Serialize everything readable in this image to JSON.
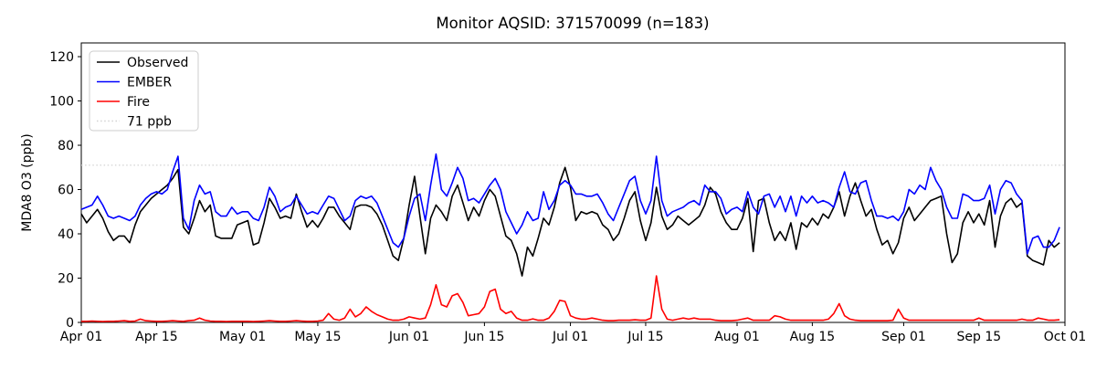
{
  "chart_data": {
    "type": "line",
    "title": "Monitor AQSID: 371570099 (n=183)",
    "ylabel": "MDA8 O3 (ppb)",
    "grid": false,
    "legend_position": "upper left",
    "x_total_days": 183,
    "x_start": "Apr 01",
    "x_end": "Oct 01",
    "x_ticks": [
      {
        "day": 0,
        "label": "Apr 01"
      },
      {
        "day": 14,
        "label": "Apr 15"
      },
      {
        "day": 30,
        "label": "May 01"
      },
      {
        "day": 44,
        "label": "May 15"
      },
      {
        "day": 61,
        "label": "Jun 01"
      },
      {
        "day": 75,
        "label": "Jun 15"
      },
      {
        "day": 91,
        "label": "Jul 01"
      },
      {
        "day": 105,
        "label": "Jul 15"
      },
      {
        "day": 122,
        "label": "Aug 01"
      },
      {
        "day": 136,
        "label": "Aug 15"
      },
      {
        "day": 153,
        "label": "Sep 01"
      },
      {
        "day": 167,
        "label": "Sep 15"
      },
      {
        "day": 183,
        "label": "Oct 01"
      }
    ],
    "y_ticks": [
      0,
      20,
      40,
      60,
      80,
      100,
      120
    ],
    "ylim": [
      0,
      126.2
    ],
    "threshold": {
      "value": 71,
      "label": "71 ppb",
      "color": "#d3d3d3",
      "style": "dotted"
    },
    "series": [
      {
        "name": "Observed",
        "color": "#000000",
        "values": [
          49,
          45,
          48,
          51,
          47,
          41,
          37,
          39,
          39,
          36,
          44,
          50,
          53,
          56,
          58,
          60,
          62,
          65,
          69,
          43,
          40,
          47,
          55,
          50,
          53,
          39,
          38,
          38,
          38,
          44,
          45,
          46,
          35,
          36,
          45,
          56,
          52,
          47,
          48,
          47,
          58,
          50,
          43,
          46,
          43,
          47,
          52,
          52,
          48,
          45,
          42,
          52,
          53,
          53,
          52,
          49,
          44,
          37,
          30,
          28,
          38,
          53,
          66,
          48,
          31,
          47,
          53,
          50,
          46,
          57,
          62,
          54,
          46,
          52,
          48,
          55,
          60,
          57,
          48,
          39,
          37,
          31,
          21,
          34,
          30,
          38,
          47,
          44,
          52,
          63,
          70,
          61,
          46,
          50,
          49,
          50,
          49,
          44,
          42,
          37,
          40,
          47,
          55,
          59,
          46,
          37,
          45,
          61,
          48,
          42,
          44,
          48,
          46,
          44,
          46,
          48,
          53,
          61,
          58,
          50,
          45,
          42,
          42,
          47,
          56,
          32,
          55,
          56,
          45,
          37,
          41,
          37,
          45,
          33,
          45,
          43,
          47,
          44,
          49,
          47,
          52,
          59,
          48,
          57,
          63,
          55,
          48,
          51,
          42,
          35,
          37,
          31,
          36,
          47,
          52,
          46,
          49,
          52,
          55,
          56,
          57,
          40,
          27,
          31,
          45,
          50,
          45,
          49,
          44,
          55,
          34,
          48,
          54,
          56,
          52,
          54,
          30,
          28,
          27,
          26,
          37,
          34,
          36
        ]
      },
      {
        "name": "EMBER",
        "color": "#0000ff",
        "values": [
          51,
          52,
          53,
          57,
          53,
          48,
          47,
          48,
          47,
          46,
          48,
          53,
          56,
          58,
          59,
          58,
          60,
          68,
          75,
          47,
          42,
          55,
          62,
          58,
          59,
          50,
          48,
          48,
          52,
          49,
          50,
          50,
          47,
          46,
          52,
          61,
          57,
          50,
          52,
          53,
          57,
          53,
          49,
          50,
          49,
          53,
          57,
          56,
          51,
          46,
          48,
          55,
          57,
          56,
          57,
          54,
          48,
          42,
          36,
          34,
          38,
          48,
          56,
          58,
          46,
          62,
          76,
          60,
          57,
          63,
          70,
          65,
          55,
          56,
          54,
          58,
          62,
          65,
          60,
          50,
          45,
          40,
          44,
          50,
          46,
          47,
          59,
          51,
          55,
          62,
          64,
          62,
          58,
          58,
          57,
          57,
          58,
          54,
          49,
          46,
          52,
          58,
          64,
          66,
          55,
          49,
          55,
          75,
          55,
          48,
          50,
          51,
          52,
          54,
          55,
          53,
          62,
          59,
          59,
          56,
          49,
          51,
          52,
          50,
          59,
          52,
          49,
          57,
          58,
          52,
          57,
          50,
          57,
          48,
          57,
          54,
          57,
          54,
          55,
          54,
          52,
          61,
          68,
          59,
          58,
          63,
          64,
          55,
          48,
          48,
          47,
          48,
          46,
          50,
          60,
          58,
          62,
          60,
          70,
          64,
          60,
          52,
          47,
          47,
          58,
          57,
          55,
          55,
          56,
          62,
          49,
          60,
          64,
          63,
          58,
          55,
          31,
          38,
          39,
          34,
          34,
          37,
          43
        ]
      },
      {
        "name": "Fire",
        "color": "#ff0000",
        "values": [
          0.5,
          0.5,
          0.6,
          0.5,
          0.4,
          0.5,
          0.5,
          0.6,
          0.8,
          0.5,
          0.6,
          1.5,
          0.8,
          0.6,
          0.5,
          0.5,
          0.6,
          0.8,
          0.6,
          0.5,
          0.8,
          1.0,
          2.0,
          1.0,
          0.6,
          0.5,
          0.5,
          0.4,
          0.5,
          0.5,
          0.5,
          0.5,
          0.4,
          0.5,
          0.6,
          0.8,
          0.6,
          0.5,
          0.5,
          0.6,
          0.8,
          0.6,
          0.5,
          0.5,
          0.6,
          1.0,
          4.0,
          1.5,
          1.0,
          2.0,
          6.0,
          2.5,
          4.0,
          7.0,
          5.0,
          3.5,
          2.5,
          1.5,
          1.0,
          1.0,
          1.5,
          2.5,
          2.0,
          1.5,
          2.0,
          8.0,
          17.0,
          8.0,
          7.0,
          12.0,
          13.0,
          9.0,
          3.0,
          3.5,
          4.0,
          7.0,
          14.0,
          15.0,
          6.0,
          4.0,
          5.0,
          2.0,
          1.0,
          1.0,
          1.6,
          1.0,
          1.0,
          2.0,
          5.0,
          10.0,
          9.5,
          3.0,
          2.0,
          1.5,
          1.5,
          2.0,
          1.5,
          1.0,
          0.8,
          0.8,
          1.0,
          1.0,
          1.0,
          1.2,
          1.0,
          1.0,
          2.0,
          21.0,
          6.0,
          1.5,
          1.0,
          1.5,
          2.0,
          1.5,
          2.0,
          1.5,
          1.5,
          1.5,
          1.0,
          0.8,
          0.8,
          0.8,
          1.0,
          1.5,
          2.0,
          1.0,
          1.0,
          1.0,
          1.0,
          3.0,
          2.5,
          1.5,
          1.0,
          1.0,
          1.0,
          1.0,
          1.0,
          1.0,
          1.0,
          1.5,
          4.0,
          8.5,
          3.0,
          1.5,
          1.0,
          0.8,
          0.8,
          0.8,
          0.8,
          0.8,
          0.8,
          1.0,
          6.0,
          2.0,
          1.0,
          1.0,
          1.0,
          1.0,
          1.0,
          1.0,
          1.0,
          1.0,
          1.0,
          1.0,
          1.0,
          1.0,
          1.0,
          2.0,
          1.0,
          1.0,
          1.0,
          1.0,
          1.0,
          1.0,
          1.0,
          1.5,
          1.0,
          1.0,
          2.0,
          1.5,
          1.0,
          1.0,
          1.2
        ]
      }
    ]
  }
}
